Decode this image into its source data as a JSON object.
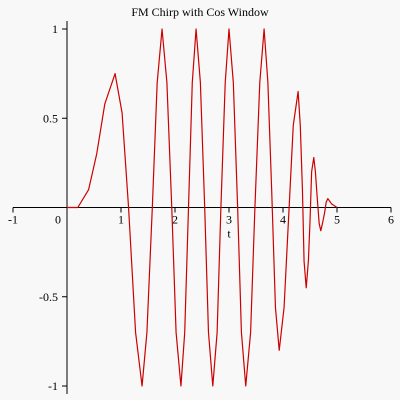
{
  "chart_data": {
    "type": "line",
    "title": "FM Chirp with Cos Window",
    "x_label": "t",
    "xlim": [
      -1,
      6
    ],
    "ylim": [
      -1,
      1
    ],
    "xticks": [
      -1,
      0,
      1,
      2,
      3,
      4,
      5,
      6
    ],
    "yticks": [
      -1,
      -0.5,
      0.5,
      1
    ],
    "series": [
      {
        "color": "#cc0000",
        "x": [
          0,
          0.2,
          0.4,
          0.55,
          0.7,
          0.89,
          1.02,
          1.14,
          1.27,
          1.39,
          1.48,
          1.58,
          1.67,
          1.76,
          1.85,
          1.94,
          2.02,
          2.11,
          2.18,
          2.25,
          2.32,
          2.39,
          2.47,
          2.55,
          2.62,
          2.7,
          2.78,
          2.85,
          2.93,
          3.0,
          3.08,
          3.16,
          3.23,
          3.31,
          3.4,
          3.48,
          3.57,
          3.65,
          3.72,
          3.79,
          3.86,
          3.93,
          4.02,
          4.1,
          4.19,
          4.28,
          4.32,
          4.36,
          4.39,
          4.43,
          4.47,
          4.5,
          4.53,
          4.57,
          4.6,
          4.63,
          4.67,
          4.7,
          4.73,
          4.77,
          4.8,
          4.83,
          4.9,
          5.0
        ],
        "values": [
          0,
          0,
          0.1,
          0.3,
          0.58,
          0.75,
          0.53,
          0,
          -0.7,
          -1,
          -0.7,
          0,
          0.7,
          1,
          0.7,
          0,
          -0.7,
          -1,
          -0.7,
          0,
          0.7,
          1,
          0.7,
          0,
          -0.7,
          -1,
          -0.7,
          0,
          0.7,
          1,
          0.7,
          0,
          -0.7,
          -1,
          -0.7,
          0,
          0.7,
          1,
          0.7,
          0.1,
          -0.56,
          -0.8,
          -0.56,
          -0.08,
          0.46,
          0.65,
          0.46,
          0.1,
          -0.3,
          -0.45,
          -0.3,
          -0.08,
          0.2,
          0.28,
          0.2,
          0.07,
          -0.09,
          -0.13,
          -0.09,
          -0.03,
          0.03,
          0.05,
          0.02,
          0
        ]
      }
    ]
  }
}
